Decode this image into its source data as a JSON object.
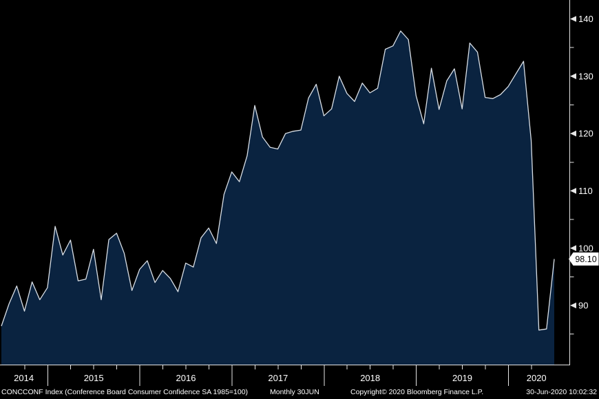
{
  "chart": {
    "last_price": "98.10"
  },
  "footer": {
    "security_line": "CONCCONF Index (Conference Board Consumer Confidence SA 1985=100)",
    "periodicity": "Monthly 30JUN",
    "copyright": "Copyright© 2020 Bloomberg Finance L.P.",
    "timestamp": "30-Jun-2020 10:02:32"
  },
  "colors": {
    "background": "#000000",
    "area_fill": "#0a2340",
    "line": "#d9dfe6",
    "axis": "#e6e6e6",
    "text": "#ffffff",
    "badge_bg": "#ffffff",
    "badge_text": "#000000"
  },
  "chart_data": {
    "type": "area",
    "title": "CONCCONF Index (Conference Board Consumer Confidence SA 1985=100)",
    "frequency": "monthly",
    "legend": false,
    "grid": false,
    "y_axis_side": "right",
    "ylim": [
      79.5,
      143.5
    ],
    "y_ticks_major": [
      90,
      100,
      110,
      120,
      130,
      140
    ],
    "y_ticks_minor": [
      85,
      95,
      105,
      115,
      125,
      135
    ],
    "x_tick_labels": [
      "2014",
      "2015",
      "2016",
      "2017",
      "2018",
      "2019",
      "2020"
    ],
    "last_value": 98.1,
    "series": [
      {
        "name": "CONCCONF Index",
        "start_month": "2014-06",
        "end_month": "2020-06",
        "values": [
          86.4,
          90.3,
          93.4,
          89.0,
          94.1,
          91.0,
          93.1,
          103.8,
          98.8,
          101.4,
          94.3,
          94.6,
          99.8,
          91.0,
          101.5,
          102.6,
          99.1,
          92.6,
          96.3,
          97.8,
          94.0,
          96.1,
          94.7,
          92.4,
          97.4,
          96.7,
          101.8,
          103.5,
          100.8,
          109.4,
          113.3,
          111.6,
          116.1,
          124.9,
          119.4,
          117.6,
          117.3,
          120.0,
          120.4,
          120.6,
          126.2,
          128.6,
          123.1,
          124.3,
          130.0,
          127.0,
          125.6,
          128.8,
          127.1,
          127.9,
          134.7,
          135.3,
          137.9,
          136.4,
          126.6,
          121.7,
          131.4,
          124.2,
          129.2,
          131.3,
          124.3,
          135.8,
          134.2,
          126.3,
          126.1,
          126.8,
          128.2,
          130.4,
          132.6,
          118.8,
          85.7,
          85.9,
          98.1
        ]
      }
    ]
  }
}
